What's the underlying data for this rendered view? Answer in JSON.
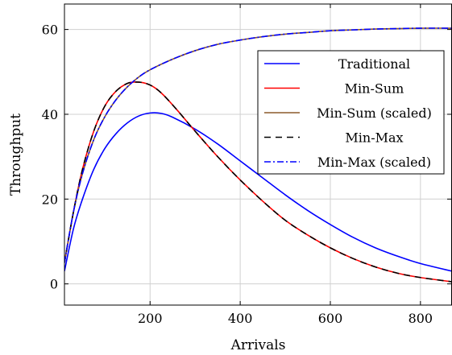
{
  "chart_data": {
    "type": "line",
    "xlabel": "Arrivals",
    "ylabel": "Throughput",
    "xlim": [
      10,
      870
    ],
    "ylim": [
      -5,
      66
    ],
    "xticks": [
      200,
      400,
      600,
      800
    ],
    "yticks": [
      0,
      20,
      40,
      60
    ],
    "grid": true,
    "legend_position": "right",
    "series": [
      {
        "name": "Traditional",
        "color": "#0000ff",
        "dash": "solid",
        "x": [
          10,
          30,
          50,
          75,
          100,
          125,
          150,
          175,
          200,
          225,
          250,
          300,
          350,
          400,
          450,
          500,
          550,
          600,
          650,
          700,
          750,
          800,
          870
        ],
        "y": [
          3,
          13,
          20,
          27,
          32,
          35.5,
          38,
          39.6,
          40.3,
          40.2,
          39.3,
          36.5,
          33,
          29,
          25,
          21,
          17.3,
          14,
          11,
          8.5,
          6.5,
          4.8,
          3
        ]
      },
      {
        "name": "Min-Sum",
        "color": "#ff0000",
        "dash": "solid",
        "x": [
          10,
          30,
          50,
          75,
          100,
          125,
          150,
          170,
          190,
          210,
          230,
          260,
          300,
          350,
          400,
          450,
          500,
          550,
          600,
          650,
          700,
          750,
          800,
          870
        ],
        "y": [
          5,
          17,
          27,
          36,
          42,
          45.5,
          47.3,
          47.6,
          47.3,
          46.3,
          44.5,
          41,
          36,
          30,
          24.5,
          19.5,
          15,
          11.5,
          8.5,
          6,
          4,
          2.5,
          1.5,
          0.5
        ]
      },
      {
        "name": "Min-Sum (scaled)",
        "color": "#8b5a2b",
        "dash": "solid",
        "x": [
          10,
          30,
          50,
          75,
          100,
          125,
          150,
          175,
          200,
          250,
          300,
          350,
          400,
          450,
          500,
          550,
          600,
          650,
          700,
          750,
          800,
          870
        ],
        "y": [
          5,
          17,
          26,
          34,
          39.5,
          43.5,
          46.5,
          48.8,
          50.5,
          53,
          55,
          56.5,
          57.5,
          58.3,
          58.9,
          59.3,
          59.7,
          59.9,
          60.1,
          60.2,
          60.3,
          60.3
        ]
      },
      {
        "name": "Min-Max",
        "color": "#000000",
        "dash": "8,6",
        "x": [
          10,
          30,
          50,
          75,
          100,
          125,
          150,
          170,
          190,
          210,
          230,
          260,
          300,
          350,
          400,
          450,
          500,
          550,
          600,
          650,
          700,
          750,
          800,
          870
        ],
        "y": [
          5,
          17,
          27,
          36,
          42,
          45.5,
          47.3,
          47.6,
          47.3,
          46.3,
          44.5,
          41,
          36,
          30,
          24.5,
          19.5,
          15,
          11.5,
          8.5,
          6,
          4,
          2.5,
          1.5,
          0.5
        ]
      },
      {
        "name": "Min-Max (scaled)",
        "color": "#0000ff",
        "dash": "8,3,2,3",
        "x": [
          10,
          30,
          50,
          75,
          100,
          125,
          150,
          175,
          200,
          250,
          300,
          350,
          400,
          450,
          500,
          550,
          600,
          650,
          700,
          750,
          800,
          870
        ],
        "y": [
          5,
          17,
          26,
          34,
          39.5,
          43.5,
          46.5,
          48.8,
          50.5,
          53,
          55,
          56.5,
          57.5,
          58.3,
          58.9,
          59.3,
          59.7,
          59.9,
          60.1,
          60.2,
          60.3,
          60.3
        ]
      }
    ]
  }
}
